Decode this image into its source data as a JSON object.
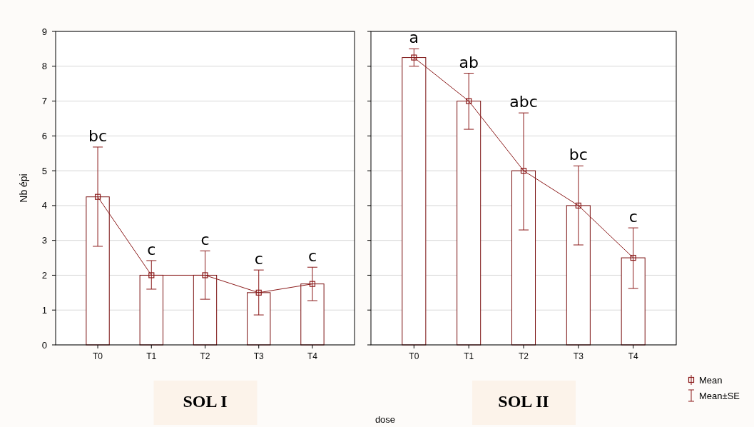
{
  "chart_data": [
    {
      "type": "bar",
      "xlabel": "SOL I",
      "ylabel": "Nb épi",
      "categories": [
        "T0",
        "T1",
        "T2",
        "T3",
        "T4"
      ],
      "ylim": [
        0,
        9
      ],
      "yticks": [
        0,
        1,
        2,
        3,
        4,
        5,
        6,
        7,
        8,
        9
      ],
      "grid": "y",
      "series": [
        {
          "color": "#ffffff",
          "values": [
            4.25,
            2.0,
            2.0,
            1.5,
            1.75
          ]
        },
        {
          "type": "line",
          "color": "#8b1a1a",
          "marker": "square",
          "values": [
            4.25,
            2.0,
            2.0,
            1.5,
            1.75
          ],
          "errors": [
            [
              2.83,
              5.68
            ],
            [
              1.6,
              2.42
            ],
            [
              1.31,
              2.7
            ],
            [
              0.86,
              2.15
            ],
            [
              1.27,
              2.23
            ]
          ]
        }
      ],
      "annotations": [
        {
          "text": "bc",
          "x": "T0",
          "y": 5.68
        },
        {
          "text": "c",
          "x": "T1",
          "y": 2.42
        },
        {
          "text": "c",
          "x": "T2",
          "y": 2.7
        },
        {
          "text": "c",
          "x": "T3",
          "y": 2.15
        },
        {
          "text": "c",
          "x": "T4",
          "y": 2.23
        }
      ]
    },
    {
      "type": "bar",
      "xlabel": "SOL II",
      "categories": [
        "T0",
        "T1",
        "T2",
        "T3",
        "T4"
      ],
      "ylim": [
        0,
        9
      ],
      "yticks": [
        0,
        1,
        2,
        3,
        4,
        5,
        6,
        7,
        8,
        9
      ],
      "grid": "y",
      "tick_labels": "x",
      "legend": "bottom right",
      "series": [
        {
          "color": "#ffffff",
          "values": [
            8.25,
            7.0,
            5.0,
            4.0,
            2.5
          ]
        },
        {
          "type": "line",
          "name": "Mean",
          "color": "#8b1a1a",
          "marker": "square",
          "values": [
            8.25,
            7.0,
            5.0,
            4.0,
            2.5
          ],
          "errors": [
            [
              8.0,
              8.5
            ],
            [
              6.19,
              7.8
            ],
            [
              3.3,
              6.66
            ],
            [
              2.87,
              5.14
            ],
            [
              1.62,
              3.36
            ]
          ]
        }
      ],
      "annotations": [
        {
          "text": "a",
          "x": "T0",
          "y": 8.5
        },
        {
          "text": "ab",
          "x": "T1",
          "y": 7.8
        },
        {
          "text": "abc",
          "x": "T2",
          "y": 6.66
        },
        {
          "text": "bc",
          "x": "T3",
          "y": 5.14
        },
        {
          "text": "c",
          "x": "T4",
          "y": 3.36
        },
        "Mean±SE",
        "dose"
      ]
    }
  ]
}
